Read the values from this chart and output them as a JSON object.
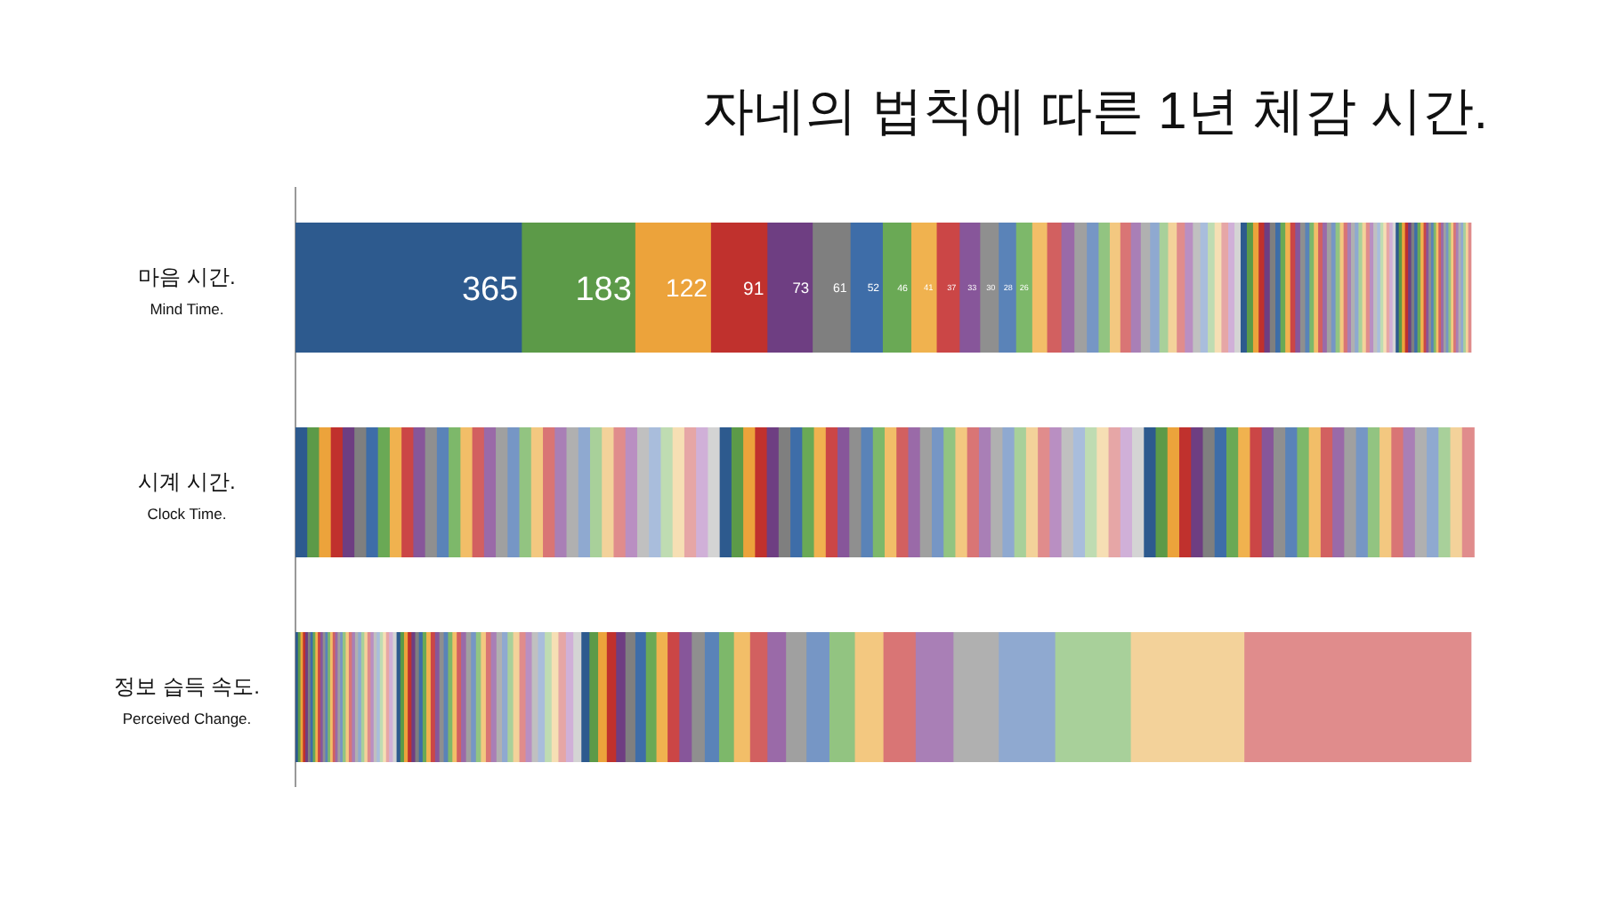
{
  "chart_data": {
    "type": "bar",
    "orientation": "horizontal",
    "stacked": true,
    "title": "자네의 법칙에 따른 1년 체감 시간.",
    "categories": [
      "마음 시간.\nMind Time.",
      "시계 시간.\nClock Time.",
      "정보 습득 속도.\nPerceived Change."
    ],
    "series": [
      {
        "color": "#2d5a8e",
        "values": [
          365,
          19,
          4
        ],
        "value_labels": [
          "365",
          null,
          null
        ]
      },
      {
        "color": "#5c9a48",
        "values": [
          183,
          19,
          4
        ],
        "value_labels": [
          "183",
          null,
          null
        ]
      },
      {
        "color": "#eca33b",
        "values": [
          122,
          19,
          4
        ],
        "value_labels": [
          "122",
          null,
          null
        ]
      },
      {
        "color": "#c0312d",
        "values": [
          91,
          19,
          4
        ],
        "value_labels": [
          "91",
          null,
          null
        ]
      },
      {
        "color": "#6e3e82",
        "values": [
          73,
          19,
          4
        ],
        "value_labels": [
          "73",
          null,
          null
        ]
      },
      {
        "color": "#7f7f7f",
        "values": [
          61,
          19,
          4
        ],
        "value_labels": [
          "61",
          null,
          null
        ]
      },
      {
        "color": "#3e6da8",
        "values": [
          52,
          19,
          4
        ],
        "value_labels": [
          "52",
          null,
          null
        ]
      },
      {
        "color": "#6aa955",
        "values": [
          46,
          19,
          4
        ],
        "value_labels": [
          "46",
          null,
          null
        ]
      },
      {
        "color": "#f0b24f",
        "values": [
          41,
          19,
          4
        ],
        "value_labels": [
          "41",
          null,
          null
        ]
      },
      {
        "color": "#cb4646",
        "values": [
          37,
          19,
          4
        ],
        "value_labels": [
          "37",
          null,
          null
        ]
      },
      {
        "color": "#87569a",
        "values": [
          33,
          19,
          4
        ],
        "value_labels": [
          "33",
          null,
          null
        ]
      },
      {
        "color": "#8f8f8f",
        "values": [
          30,
          19,
          4
        ],
        "value_labels": [
          "30",
          null,
          null
        ]
      },
      {
        "color": "#5a83b8",
        "values": [
          28,
          19,
          4
        ],
        "value_labels": [
          "28",
          null,
          null
        ]
      },
      {
        "color": "#7db86a",
        "values": [
          26,
          19,
          4
        ],
        "value_labels": [
          "26",
          null,
          null
        ]
      },
      {
        "color": "#f2be68",
        "values": [
          24,
          19,
          4
        ]
      },
      {
        "color": "#d26060",
        "values": [
          23,
          19,
          4
        ]
      },
      {
        "color": "#9a6aa8",
        "values": [
          21,
          19,
          4
        ]
      },
      {
        "color": "#a0a0a0",
        "values": [
          20,
          19,
          4
        ]
      },
      {
        "color": "#7696c5",
        "values": [
          19,
          19,
          4
        ]
      },
      {
        "color": "#92c481",
        "values": [
          18,
          19,
          5
        ]
      },
      {
        "color": "#f3c880",
        "values": [
          17,
          19,
          5
        ]
      },
      {
        "color": "#d97575",
        "values": [
          17,
          19,
          5
        ]
      },
      {
        "color": "#a97fb6",
        "values": [
          16,
          19,
          5
        ]
      },
      {
        "color": "#b0b0b0",
        "values": [
          15,
          19,
          5
        ]
      },
      {
        "color": "#8fa9d0",
        "values": [
          15,
          19,
          5
        ]
      },
      {
        "color": "#a8d09a",
        "values": [
          14,
          19,
          5
        ]
      },
      {
        "color": "#f3d29a",
        "values": [
          14,
          19,
          5
        ]
      },
      {
        "color": "#e08c8c",
        "values": [
          13,
          19,
          5
        ]
      },
      {
        "color": "#b98fc2",
        "values": [
          13,
          19,
          5
        ]
      },
      {
        "color": "#c0c0c0",
        "values": [
          12,
          19,
          5
        ]
      },
      {
        "color": "#a9bddc",
        "values": [
          12,
          19,
          5
        ]
      },
      {
        "color": "#bfdcb2",
        "values": [
          11,
          19,
          5
        ]
      },
      {
        "color": "#f6dfb4",
        "values": [
          11,
          19,
          5
        ]
      },
      {
        "color": "#e6a6a6",
        "values": [
          11,
          19,
          5
        ]
      },
      {
        "color": "#d0b0d8",
        "values": [
          10,
          19,
          6
        ]
      },
      {
        "color": "#d4d4d4",
        "values": [
          10,
          19,
          6
        ]
      },
      {
        "color": "#2d5a8e",
        "values": [
          10,
          19,
          6
        ]
      },
      {
        "color": "#5c9a48",
        "values": [
          10,
          19,
          6
        ]
      },
      {
        "color": "#eca33b",
        "values": [
          9,
          19,
          6
        ]
      },
      {
        "color": "#c0312d",
        "values": [
          9,
          19,
          6
        ]
      },
      {
        "color": "#6e3e82",
        "values": [
          9,
          19,
          6
        ]
      },
      {
        "color": "#7f7f7f",
        "values": [
          9,
          19,
          6
        ]
      },
      {
        "color": "#3e6da8",
        "values": [
          8,
          19,
          6
        ]
      },
      {
        "color": "#6aa955",
        "values": [
          8,
          19,
          6
        ]
      },
      {
        "color": "#f0b24f",
        "values": [
          8,
          19,
          7
        ]
      },
      {
        "color": "#cb4646",
        "values": [
          8,
          19,
          7
        ]
      },
      {
        "color": "#87569a",
        "values": [
          8,
          19,
          7
        ]
      },
      {
        "color": "#8f8f8f",
        "values": [
          8,
          19,
          7
        ]
      },
      {
        "color": "#5a83b8",
        "values": [
          7,
          19,
          7
        ]
      },
      {
        "color": "#7db86a",
        "values": [
          7,
          19,
          7
        ]
      },
      {
        "color": "#f2be68",
        "values": [
          7,
          19,
          7
        ]
      },
      {
        "color": "#d26060",
        "values": [
          7,
          19,
          7
        ]
      },
      {
        "color": "#9a6aa8",
        "values": [
          7,
          19,
          8
        ]
      },
      {
        "color": "#a0a0a0",
        "values": [
          7,
          19,
          8
        ]
      },
      {
        "color": "#7696c5",
        "values": [
          7,
          19,
          8
        ]
      },
      {
        "color": "#92c481",
        "values": [
          7,
          19,
          8
        ]
      },
      {
        "color": "#f3c880",
        "values": [
          6,
          19,
          8
        ]
      },
      {
        "color": "#d97575",
        "values": [
          6,
          19,
          8
        ]
      },
      {
        "color": "#a97fb6",
        "values": [
          6,
          19,
          9
        ]
      },
      {
        "color": "#b0b0b0",
        "values": [
          6,
          19,
          9
        ]
      },
      {
        "color": "#8fa9d0",
        "values": [
          6,
          19,
          9
        ]
      },
      {
        "color": "#a8d09a",
        "values": [
          6,
          19,
          9
        ]
      },
      {
        "color": "#f3d29a",
        "values": [
          6,
          19,
          10
        ]
      },
      {
        "color": "#e08c8c",
        "values": [
          6,
          19,
          10
        ]
      },
      {
        "color": "#b98fc2",
        "values": [
          6,
          19,
          10
        ]
      },
      {
        "color": "#c0c0c0",
        "values": [
          6,
          19,
          10
        ]
      },
      {
        "color": "#a9bddc",
        "values": [
          5,
          19,
          11
        ]
      },
      {
        "color": "#bfdcb2",
        "values": [
          5,
          19,
          11
        ]
      },
      {
        "color": "#f6dfb4",
        "values": [
          5,
          19,
          11
        ]
      },
      {
        "color": "#e6a6a6",
        "values": [
          5,
          19,
          12
        ]
      },
      {
        "color": "#d0b0d8",
        "values": [
          5,
          19,
          12
        ]
      },
      {
        "color": "#d4d4d4",
        "values": [
          5,
          19,
          13
        ]
      },
      {
        "color": "#2d5a8e",
        "values": [
          5,
          19,
          13
        ]
      },
      {
        "color": "#5c9a48",
        "values": [
          5,
          19,
          14
        ]
      },
      {
        "color": "#eca33b",
        "values": [
          5,
          19,
          14
        ]
      },
      {
        "color": "#c0312d",
        "values": [
          5,
          19,
          15
        ]
      },
      {
        "color": "#6e3e82",
        "values": [
          5,
          19,
          15
        ]
      },
      {
        "color": "#7f7f7f",
        "values": [
          5,
          19,
          16
        ]
      },
      {
        "color": "#3e6da8",
        "values": [
          5,
          19,
          17
        ]
      },
      {
        "color": "#6aa955",
        "values": [
          5,
          19,
          17
        ]
      },
      {
        "color": "#f0b24f",
        "values": [
          5,
          19,
          18
        ]
      },
      {
        "color": "#cb4646",
        "values": [
          4,
          19,
          19
        ]
      },
      {
        "color": "#87569a",
        "values": [
          4,
          19,
          20
        ]
      },
      {
        "color": "#8f8f8f",
        "values": [
          4,
          19,
          21
        ]
      },
      {
        "color": "#5a83b8",
        "values": [
          4,
          19,
          23
        ]
      },
      {
        "color": "#7db86a",
        "values": [
          4,
          19,
          24
        ]
      },
      {
        "color": "#f2be68",
        "values": [
          4,
          19,
          26
        ]
      },
      {
        "color": "#d26060",
        "values": [
          4,
          19,
          28
        ]
      },
      {
        "color": "#9a6aa8",
        "values": [
          4,
          19,
          30
        ]
      },
      {
        "color": "#a0a0a0",
        "values": [
          4,
          19,
          33
        ]
      },
      {
        "color": "#7696c5",
        "values": [
          4,
          19,
          37
        ]
      },
      {
        "color": "#92c481",
        "values": [
          4,
          19,
          41
        ]
      },
      {
        "color": "#f3c880",
        "values": [
          4,
          19,
          46
        ]
      },
      {
        "color": "#d97575",
        "values": [
          4,
          19,
          52
        ]
      },
      {
        "color": "#a97fb6",
        "values": [
          4,
          19,
          61
        ]
      },
      {
        "color": "#b0b0b0",
        "values": [
          4,
          19,
          73
        ]
      },
      {
        "color": "#8fa9d0",
        "values": [
          4,
          19,
          91
        ]
      },
      {
        "color": "#a8d09a",
        "values": [
          4,
          19,
          122
        ]
      },
      {
        "color": "#f3d29a",
        "values": [
          4,
          19,
          183
        ]
      },
      {
        "color": "#e08c8c",
        "values": [
          4,
          19,
          365
        ]
      }
    ]
  }
}
